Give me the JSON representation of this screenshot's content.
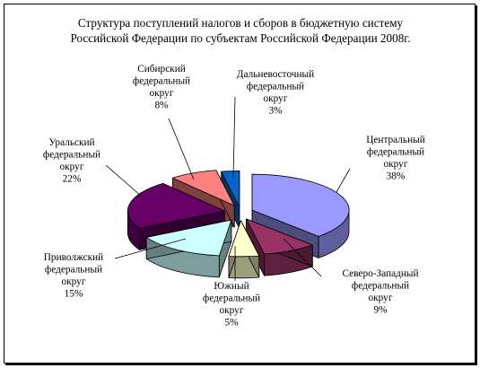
{
  "chart_data": {
    "type": "pie",
    "title_lines": [
      "Структура поступлений налогов и сборов в бюджетную систему",
      "Российской Федерации по субъектам Российской Федерации  2008г."
    ],
    "slices": [
      {
        "label_lines": [
          "Центральный",
          "федеральный",
          "округ"
        ],
        "value": 38,
        "value_label": "38%",
        "color": "#9999ff"
      },
      {
        "label_lines": [
          "Северо-Западный",
          "федеральный",
          "округ"
        ],
        "value": 9,
        "value_label": "9%",
        "color": "#993366"
      },
      {
        "label_lines": [
          "Южный",
          "федеральный",
          "округ"
        ],
        "value": 5,
        "value_label": "5%",
        "color": "#ffffcc"
      },
      {
        "label_lines": [
          "Приволжский",
          "федеральный",
          "округ"
        ],
        "value": 15,
        "value_label": "15%",
        "color": "#ccffff"
      },
      {
        "label_lines": [
          "Уральский",
          "федеральный",
          "округ"
        ],
        "value": 22,
        "value_label": "22%",
        "color": "#660066"
      },
      {
        "label_lines": [
          "Сибирский",
          "федеральный",
          "округ"
        ],
        "value": 8,
        "value_label": "8%",
        "color": "#ff8080"
      },
      {
        "label_lines": [
          "Дальневосточный",
          "федеральный",
          "округ"
        ],
        "value": 3,
        "value_label": "3%",
        "color": "#0066cc"
      }
    ],
    "exploded": true,
    "three_d": true
  }
}
